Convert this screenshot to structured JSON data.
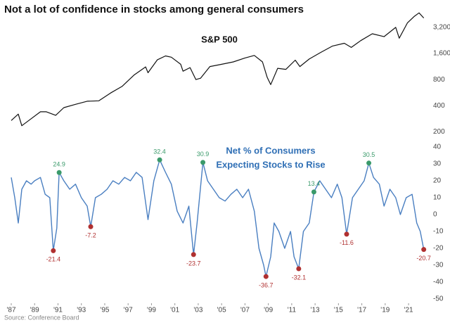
{
  "title": "Not a lot of confidence in stocks among general consumers",
  "source": "Source: Conference Board",
  "chart_data": [
    {
      "type": "line",
      "title": "S&P 500",
      "color": "#111111",
      "yscale": "log",
      "xlim": [
        1987,
        2022.5
      ],
      "ylim": [
        180,
        5000
      ],
      "yticks": [
        200,
        400,
        800,
        {
          "value": 1600,
          "label": "1,600"
        },
        {
          "value": 3200,
          "label": "3,200"
        }
      ],
      "x": [
        1987.0,
        1987.6,
        1987.9,
        1988.5,
        1989.5,
        1990.0,
        1990.8,
        1991.5,
        1992.5,
        1993.5,
        1994.5,
        1995.5,
        1996.5,
        1997.5,
        1998.5,
        1998.7,
        1999.5,
        2000.2,
        2000.7,
        2001.5,
        2001.7,
        2002.3,
        2002.8,
        2003.2,
        2004.0,
        2005.0,
        2006.0,
        2007.0,
        2007.8,
        2008.5,
        2008.9,
        2009.2,
        2009.8,
        2010.5,
        2011.3,
        2011.7,
        2012.5,
        2013.5,
        2014.5,
        2015.5,
        2016.1,
        2016.9,
        2017.9,
        2018.9,
        2019.9,
        2020.2,
        2020.9,
        2021.5,
        2021.9,
        2022.3
      ],
      "values": [
        270,
        320,
        235,
        270,
        340,
        340,
        310,
        380,
        415,
        450,
        455,
        560,
        670,
        900,
        1120,
        960,
        1350,
        1500,
        1450,
        1200,
        1000,
        1100,
        800,
        830,
        1130,
        1200,
        1280,
        1420,
        1520,
        1280,
        850,
        700,
        1080,
        1050,
        1340,
        1130,
        1380,
        1650,
        1950,
        2100,
        1880,
        2250,
        2700,
        2500,
        3200,
        2400,
        3600,
        4300,
        4700,
        4100
      ]
    },
    {
      "type": "line",
      "title": [
        "Net % of Consumers",
        "Expecting Stocks to Rise"
      ],
      "color": "#4a7fc1",
      "xlim": [
        1987,
        2022.5
      ],
      "ylim": [
        -50,
        40
      ],
      "yticks": [
        40,
        30,
        20,
        10,
        0,
        -10,
        -20,
        -30,
        -40,
        -50
      ],
      "xticks": [
        {
          "value": 1987,
          "label": "'87"
        },
        {
          "value": 1989,
          "label": "'89"
        },
        {
          "value": 1991,
          "label": "'91"
        },
        {
          "value": 1993,
          "label": "'93"
        },
        {
          "value": 1995,
          "label": "'95"
        },
        {
          "value": 1997,
          "label": "'97"
        },
        {
          "value": 1999,
          "label": "'99"
        },
        {
          "value": 2001,
          "label": "'01"
        },
        {
          "value": 2003,
          "label": "'03"
        },
        {
          "value": 2005,
          "label": "'05"
        },
        {
          "value": 2007,
          "label": "'07"
        },
        {
          "value": 2009,
          "label": "'09"
        },
        {
          "value": 2011,
          "label": "'11"
        },
        {
          "value": 2013,
          "label": "'13"
        },
        {
          "value": 2015,
          "label": "'15"
        },
        {
          "value": 2017,
          "label": "'17"
        },
        {
          "value": 2019,
          "label": "'19"
        },
        {
          "value": 2021,
          "label": "'21"
        }
      ],
      "x": [
        1987.0,
        1987.3,
        1987.6,
        1987.9,
        1988.3,
        1988.7,
        1989.0,
        1989.5,
        1989.9,
        1990.3,
        1990.6,
        1990.9,
        1991.1,
        1991.5,
        1992.0,
        1992.5,
        1993.0,
        1993.5,
        1993.8,
        1994.2,
        1994.7,
        1995.2,
        1995.7,
        1996.2,
        1996.7,
        1997.2,
        1997.7,
        1998.2,
        1998.7,
        1999.2,
        1999.7,
        2000.2,
        2000.7,
        2001.2,
        2001.7,
        2002.2,
        2002.6,
        2002.9,
        2003.4,
        2003.8,
        2004.3,
        2004.8,
        2005.3,
        2005.8,
        2006.3,
        2006.8,
        2007.3,
        2007.8,
        2008.2,
        2008.6,
        2008.8,
        2009.2,
        2009.5,
        2009.9,
        2010.4,
        2010.9,
        2011.2,
        2011.6,
        2012.0,
        2012.5,
        2012.9,
        2013.4,
        2013.9,
        2014.4,
        2014.9,
        2015.3,
        2015.7,
        2016.2,
        2016.7,
        2017.2,
        2017.6,
        2018.0,
        2018.5,
        2018.9,
        2019.4,
        2019.9,
        2020.3,
        2020.8,
        2021.3,
        2021.7,
        2022.0,
        2022.3
      ],
      "values": [
        22,
        10,
        -5,
        15,
        20,
        18,
        20,
        22,
        12,
        10,
        -21.4,
        -8,
        24.9,
        20,
        15,
        18,
        10,
        5,
        -7.2,
        10,
        12,
        15,
        20,
        18,
        22,
        20,
        25,
        22,
        -3,
        20,
        32.4,
        25,
        18,
        2,
        -5,
        5,
        -23.7,
        -5,
        30.9,
        20,
        15,
        10,
        8,
        12,
        15,
        10,
        15,
        2,
        -20,
        -30,
        -36.7,
        -25,
        -5,
        -10,
        -20,
        -10,
        -25,
        -32.1,
        -10,
        -5,
        13.4,
        20,
        15,
        10,
        18,
        10,
        -11.6,
        10,
        15,
        20,
        30.5,
        22,
        18,
        5,
        15,
        10,
        0,
        10,
        12,
        -5,
        -10,
        -20.7
      ],
      "annotations": [
        {
          "x": 1991.1,
          "value": 24.9,
          "color": "#3a9a6a"
        },
        {
          "x": 1999.7,
          "value": 32.4,
          "color": "#3a9a6a"
        },
        {
          "x": 2003.4,
          "value": 30.9,
          "color": "#3a9a6a"
        },
        {
          "x": 2012.9,
          "value": 13.4,
          "color": "#3a9a6a"
        },
        {
          "x": 2017.6,
          "value": 30.5,
          "color": "#3a9a6a"
        },
        {
          "x": 1990.6,
          "value": -21.4,
          "color": "#b03030"
        },
        {
          "x": 1993.8,
          "value": -7.2,
          "color": "#b03030"
        },
        {
          "x": 2002.6,
          "value": -23.7,
          "color": "#b03030"
        },
        {
          "x": 2008.8,
          "value": -36.7,
          "color": "#b03030"
        },
        {
          "x": 2011.6,
          "value": -32.1,
          "color": "#b03030"
        },
        {
          "x": 2015.7,
          "value": -11.6,
          "color": "#b03030"
        },
        {
          "x": 2022.3,
          "value": -20.7,
          "color": "#b03030"
        }
      ]
    }
  ]
}
